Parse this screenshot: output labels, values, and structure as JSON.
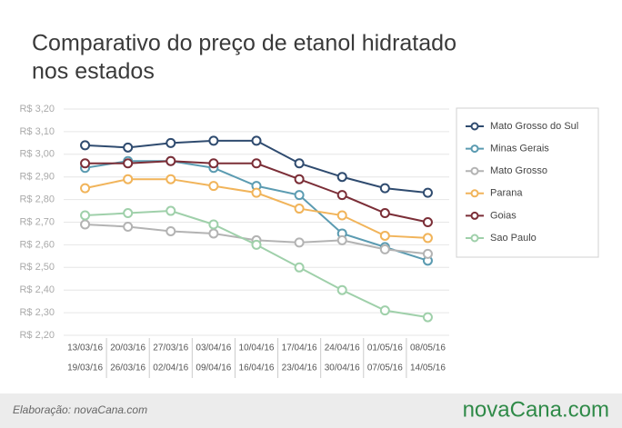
{
  "chart_data": {
    "type": "line",
    "title": [
      "Comparativo do preço de etanol hidratado",
      "nos estados"
    ],
    "categories": [
      [
        "13/03/16",
        "19/03/16"
      ],
      [
        "20/03/16",
        "26/03/16"
      ],
      [
        "27/03/16",
        "02/04/16"
      ],
      [
        "03/04/16",
        "09/04/16"
      ],
      [
        "10/04/16",
        "16/04/16"
      ],
      [
        "17/04/16",
        "23/04/16"
      ],
      [
        "24/04/16",
        "30/04/16"
      ],
      [
        "01/05/16",
        "07/05/16"
      ],
      [
        "08/05/16",
        "14/05/16"
      ]
    ],
    "series": [
      {
        "name": "Mato Grosso do Sul",
        "color": "#2f4b6f",
        "values": [
          3.04,
          3.03,
          3.05,
          3.06,
          3.06,
          2.96,
          2.9,
          2.85,
          2.83
        ]
      },
      {
        "name": "Minas Gerais",
        "color": "#5b9bb1",
        "values": [
          2.94,
          2.97,
          2.97,
          2.94,
          2.86,
          2.82,
          2.65,
          2.59,
          2.53
        ]
      },
      {
        "name": "Mato Grosso",
        "color": "#b3b3b3",
        "values": [
          2.69,
          2.68,
          2.66,
          2.65,
          2.62,
          2.61,
          2.62,
          2.58,
          2.56
        ]
      },
      {
        "name": "Parana",
        "color": "#f1b45a",
        "values": [
          2.85,
          2.89,
          2.89,
          2.86,
          2.83,
          2.76,
          2.73,
          2.64,
          2.63
        ]
      },
      {
        "name": "Goias",
        "color": "#7b2e37",
        "values": [
          2.96,
          2.96,
          2.97,
          2.96,
          2.96,
          2.89,
          2.82,
          2.74,
          2.7
        ]
      },
      {
        "name": "Sao Paulo",
        "color": "#9fd0aa",
        "values": [
          2.73,
          2.74,
          2.75,
          2.69,
          2.6,
          2.5,
          2.4,
          2.31,
          2.28
        ]
      }
    ],
    "ylim": [
      2.2,
      3.2
    ],
    "yticks": [
      {
        "value": 2.2,
        "label": "R$ 2,20"
      },
      {
        "value": 2.3,
        "label": "R$ 2,30"
      },
      {
        "value": 2.4,
        "label": "R$ 2,40"
      },
      {
        "value": 2.5,
        "label": "R$ 2,50"
      },
      {
        "value": 2.6,
        "label": "R$ 2,60"
      },
      {
        "value": 2.7,
        "label": "R$ 2,70"
      },
      {
        "value": 2.8,
        "label": "R$ 2,80"
      },
      {
        "value": 2.9,
        "label": "R$ 2,90"
      },
      {
        "value": 3.0,
        "label": "R$ 3,00"
      },
      {
        "value": 3.1,
        "label": "R$ 3,10"
      },
      {
        "value": 3.2,
        "label": "R$ 3,20"
      }
    ],
    "grid": true,
    "legend": "right",
    "source": "Elaboração: novaCana.com",
    "logo": "novaCana.com"
  }
}
